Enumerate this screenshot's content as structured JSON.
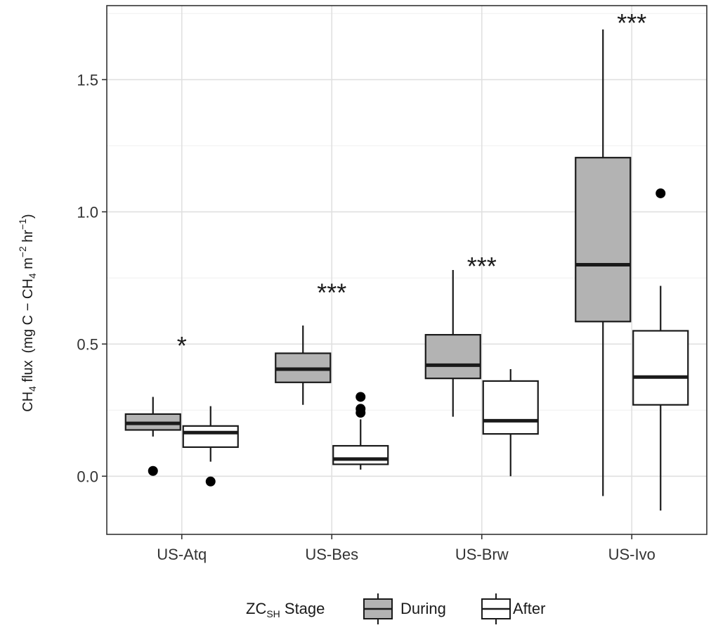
{
  "chart_data": {
    "type": "box",
    "categories": [
      "US-Atq",
      "US-Bes",
      "US-Brw",
      "US-Ivo"
    ],
    "ylabel": {
      "prefix_main": "CH",
      "prefix_sub": "4",
      "flux_word": " flux",
      "unit_open": "(mg C",
      "unit_dash": " − ",
      "unit_ch": "CH",
      "unit_ch_sub": "4",
      "unit_m": " m",
      "unit_m_sup": "−2",
      "unit_hr": " hr",
      "unit_hr_sup": "−1",
      "unit_close": ")"
    },
    "ylim": [
      -0.22,
      1.78
    ],
    "yticks": [
      0.0,
      0.5,
      1.0,
      1.5
    ],
    "ytick_labels": [
      "0.0",
      "0.5",
      "1.0",
      "1.5"
    ],
    "grid": true,
    "legend": {
      "position": "bottom",
      "title_main": "ZC",
      "title_sub": "SH",
      "title_rest": " Stage"
    },
    "series": [
      {
        "name": "During",
        "fill": "#b3b3b3",
        "boxes": [
          {
            "category": "US-Atq",
            "whisker_low": 0.15,
            "q1": 0.175,
            "median": 0.2,
            "q3": 0.235,
            "whisker_high": 0.3,
            "outliers": [
              0.02
            ]
          },
          {
            "category": "US-Bes",
            "whisker_low": 0.27,
            "q1": 0.355,
            "median": 0.405,
            "q3": 0.465,
            "whisker_high": 0.57,
            "outliers": []
          },
          {
            "category": "US-Brw",
            "whisker_low": 0.225,
            "q1": 0.37,
            "median": 0.42,
            "q3": 0.535,
            "whisker_high": 0.78,
            "outliers": []
          },
          {
            "category": "US-Ivo",
            "whisker_low": -0.075,
            "q1": 0.585,
            "median": 0.8,
            "q3": 1.205,
            "whisker_high": 1.69,
            "outliers": []
          }
        ]
      },
      {
        "name": "After",
        "fill": "#ffffff",
        "boxes": [
          {
            "category": "US-Atq",
            "whisker_low": 0.055,
            "q1": 0.11,
            "median": 0.165,
            "q3": 0.19,
            "whisker_high": 0.265,
            "outliers": [
              -0.02
            ]
          },
          {
            "category": "US-Bes",
            "whisker_low": 0.025,
            "q1": 0.045,
            "median": 0.065,
            "q3": 0.115,
            "whisker_high": 0.215,
            "outliers": [
              0.24,
              0.255,
              0.3
            ]
          },
          {
            "category": "US-Brw",
            "whisker_low": 0.0,
            "q1": 0.16,
            "median": 0.21,
            "q3": 0.36,
            "whisker_high": 0.405,
            "outliers": []
          },
          {
            "category": "US-Ivo",
            "whisker_low": -0.13,
            "q1": 0.27,
            "median": 0.375,
            "q3": 0.55,
            "whisker_high": 0.72,
            "outliers": [
              1.07
            ]
          }
        ]
      }
    ],
    "annotations": [
      {
        "category": "US-Atq",
        "text": "*",
        "y": 0.52
      },
      {
        "category": "US-Bes",
        "text": "***",
        "y": 0.72
      },
      {
        "category": "US-Brw",
        "text": "***",
        "y": 0.82
      },
      {
        "category": "US-Ivo",
        "text": "***",
        "y": 1.74
      }
    ]
  }
}
